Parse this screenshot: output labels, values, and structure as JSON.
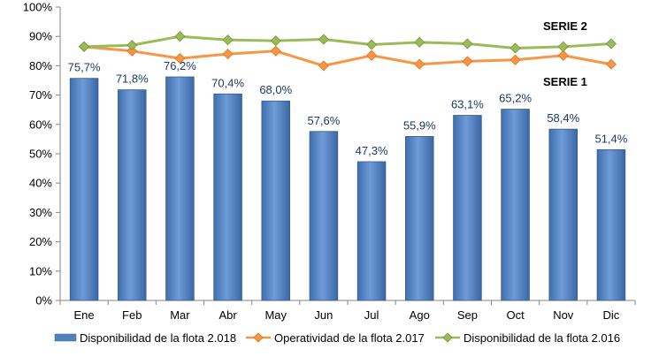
{
  "chart_data": {
    "type": "bar",
    "categories": [
      "Ene",
      "Feb",
      "Mar",
      "Abr",
      "May",
      "Jun",
      "Jul",
      "Ago",
      "Sep",
      "Oct",
      "Nov",
      "Dic"
    ],
    "series": [
      {
        "name": "Disponibilidad de la flota 2.018",
        "type": "bar",
        "color": "#4f81bd",
        "values": [
          75.7,
          71.8,
          76.2,
          70.4,
          68.0,
          57.6,
          47.3,
          55.9,
          63.1,
          65.2,
          58.4,
          51.4
        ],
        "labels": [
          "75,7%",
          "71,8%",
          "76,2%",
          "70,4%",
          "68,0%",
          "57,6%",
          "47,3%",
          "55,9%",
          "63,1%",
          "65,2%",
          "58,4%",
          "51,4%"
        ]
      },
      {
        "name": "Operatividad de la flota 2.017",
        "type": "line",
        "color": "#f79646",
        "values": [
          86.5,
          85.0,
          82.5,
          84.0,
          85.0,
          80.0,
          83.5,
          80.5,
          81.5,
          82.0,
          83.5,
          80.5
        ]
      },
      {
        "name": "Disponibilidad de la flota 2.016",
        "type": "line",
        "color": "#9bbb59",
        "values": [
          86.5,
          87.0,
          90.0,
          88.8,
          88.5,
          89.0,
          87.2,
          88.0,
          87.5,
          86.0,
          86.5,
          87.5
        ]
      }
    ],
    "annotations": [
      "SERIE 2",
      "SERIE 1"
    ],
    "ylim": [
      0,
      100
    ],
    "yticks": [
      0,
      10,
      20,
      30,
      40,
      50,
      60,
      70,
      80,
      90,
      100
    ],
    "ytick_labels": [
      "0%",
      "10%",
      "20%",
      "30%",
      "40%",
      "50%",
      "60%",
      "70%",
      "80%",
      "90%",
      "100%"
    ],
    "xlabel": "",
    "ylabel": "",
    "grid": false,
    "legend_position": "bottom"
  }
}
